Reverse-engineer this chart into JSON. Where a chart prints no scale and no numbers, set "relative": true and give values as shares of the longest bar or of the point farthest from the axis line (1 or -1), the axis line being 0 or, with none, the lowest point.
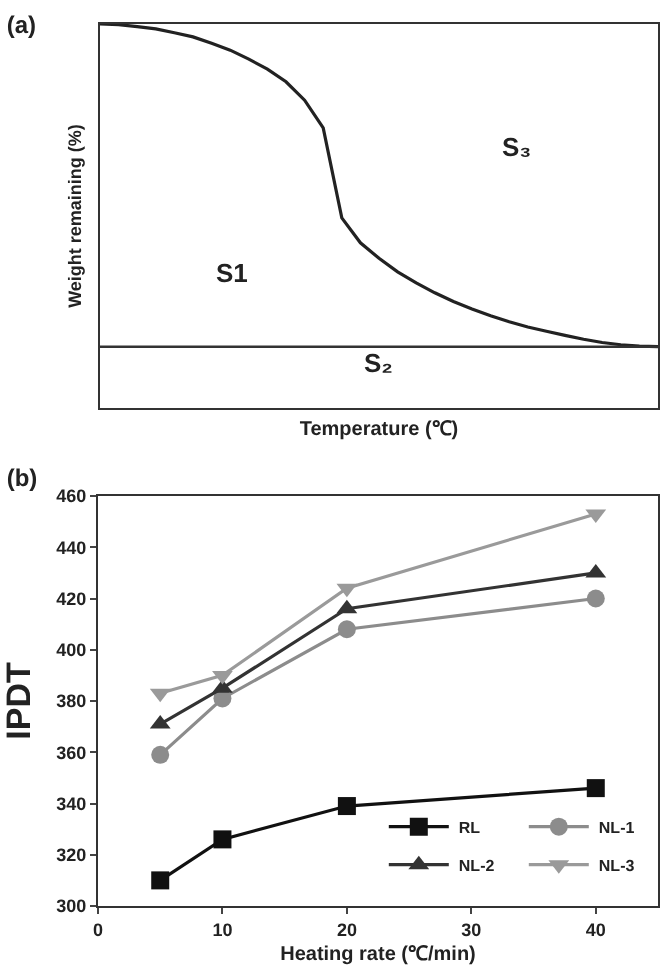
{
  "chart_data": [
    {
      "type": "line",
      "title": "(a)",
      "xlabel": "Temperature (℃)",
      "ylabel": "Weight remaining (%)",
      "relative": true,
      "grid": false,
      "legend": false,
      "marker": "none",
      "line_style": "solid",
      "categories": [
        null,
        null,
        null,
        null,
        null,
        null,
        null,
        null,
        null,
        null,
        null,
        null,
        null,
        null,
        null,
        null,
        null,
        null,
        null,
        null,
        null,
        null,
        null,
        null,
        null,
        null,
        null,
        null,
        null,
        null,
        null
      ],
      "series": [
        {
          "color": "#222222",
          "values": [
            1.0,
            0.998,
            0.992,
            0.985,
            0.973,
            0.96,
            0.94,
            0.919,
            0.891,
            0.86,
            0.821,
            0.764,
            0.678,
            0.399,
            0.322,
            0.274,
            0.232,
            0.198,
            0.167,
            0.14,
            0.117,
            0.096,
            0.077,
            0.061,
            0.048,
            0.035,
            0.023,
            0.013,
            0.006,
            0.002,
            0.0
          ]
        }
      ],
      "annotations": [
        "S1",
        "S₂",
        "S₃"
      ]
    },
    {
      "type": "line",
      "title": "(b)",
      "xlabel": "Heating rate (℃/min)",
      "ylabel": "IPDT",
      "grid": false,
      "legend": "bottom right",
      "line_style": "solid",
      "x": [
        5,
        10,
        20,
        40
      ],
      "xlim": [
        0,
        45
      ],
      "xticks": [
        0,
        10,
        20,
        30,
        40
      ],
      "ylim": [
        300,
        460
      ],
      "yticks": [
        300,
        320,
        340,
        360,
        380,
        400,
        420,
        440,
        460
      ],
      "series": [
        {
          "name": "RL",
          "color": "#111111",
          "marker": "square",
          "values": [
            310,
            326,
            339,
            346
          ]
        },
        {
          "name": "NL-1",
          "color": "#8c8c8c",
          "marker": "circle",
          "values": [
            359,
            381,
            408,
            420
          ]
        },
        {
          "name": "NL-2",
          "color": "#333333",
          "marker": "triangle",
          "values": [
            371,
            385,
            416,
            430
          ]
        },
        {
          "name": "NL-3",
          "color": "#9a9a9a",
          "marker": "triangle-down",
          "values": [
            383,
            390,
            424,
            453
          ]
        }
      ]
    }
  ]
}
